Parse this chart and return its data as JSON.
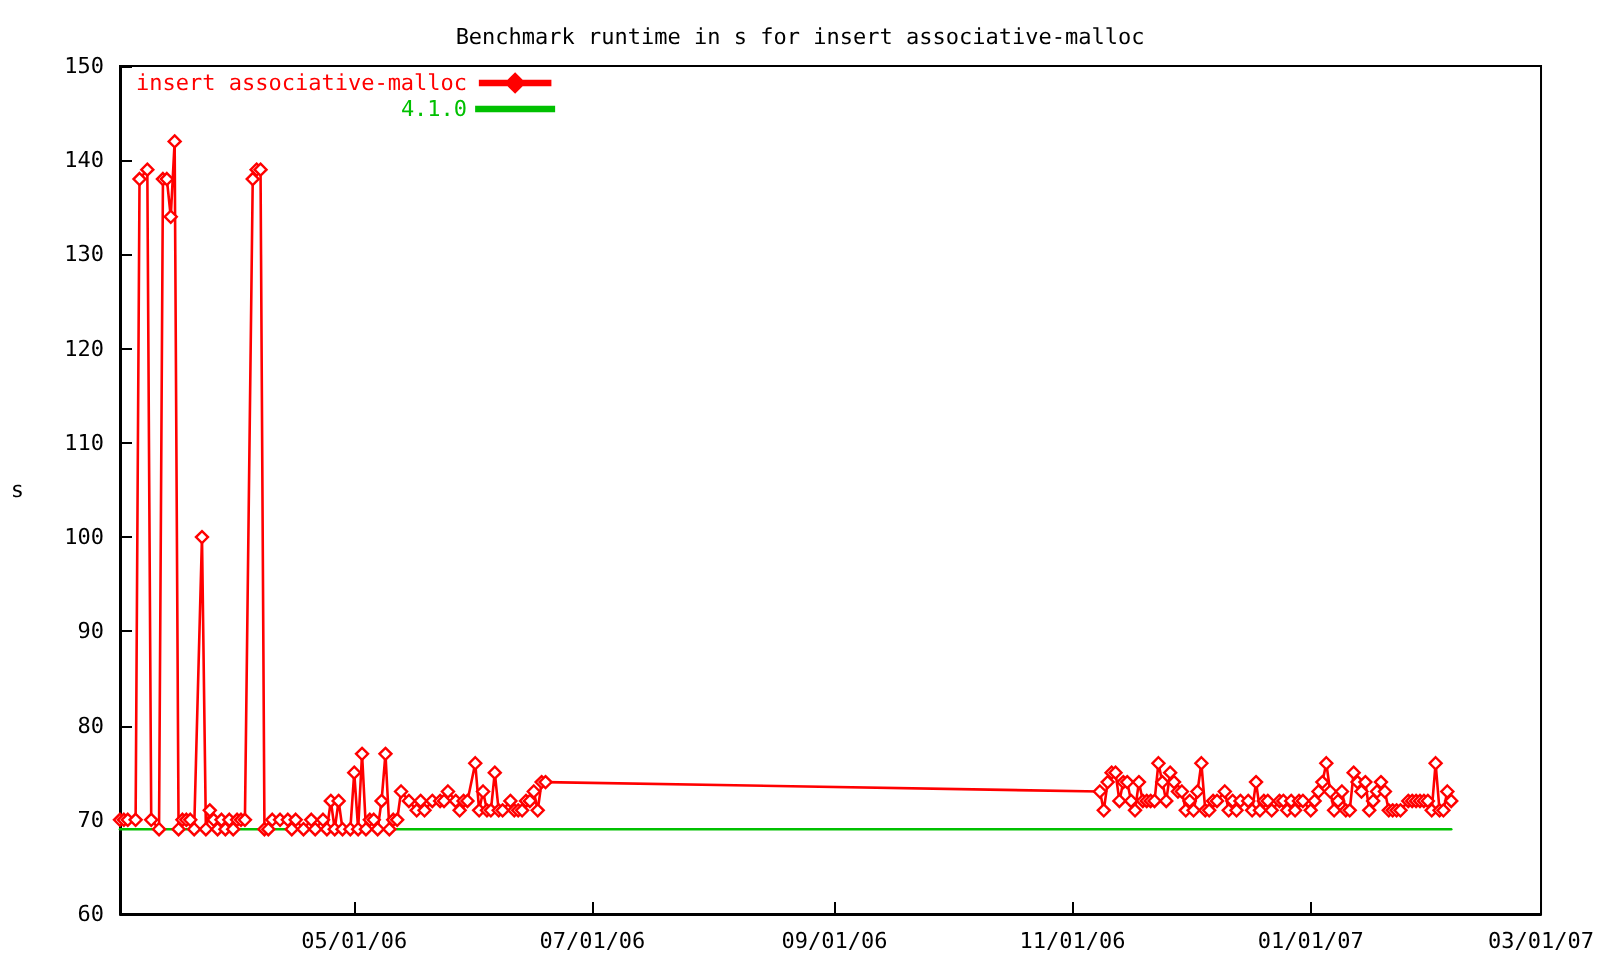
{
  "chart_data": {
    "type": "line",
    "title": "Benchmark runtime in s for insert associative-malloc",
    "ylabel": "s",
    "xlim": [
      "2006-03-02",
      "2007-03-01"
    ],
    "ylim": [
      60,
      150
    ],
    "xticks": [
      {
        "value": "2006-05-01",
        "label": "05/01/06"
      },
      {
        "value": "2006-07-01",
        "label": "07/01/06"
      },
      {
        "value": "2006-09-01",
        "label": "09/01/06"
      },
      {
        "value": "2006-11-01",
        "label": "11/01/06"
      },
      {
        "value": "2007-01-01",
        "label": "01/01/07"
      },
      {
        "value": "2007-03-01",
        "label": "03/01/07"
      }
    ],
    "yticks": [
      60,
      70,
      80,
      90,
      100,
      110,
      120,
      130,
      140,
      150
    ],
    "grid": false,
    "legend": "top left",
    "marker": "diamond",
    "line_style": "solid",
    "series": [
      {
        "name": "insert associative-malloc",
        "color": "#ff0000",
        "x": [
          "2006-03-02",
          "2006-03-03",
          "2006-03-04",
          "2006-03-06",
          "2006-03-07",
          "2006-03-09",
          "2006-03-10",
          "2006-03-12",
          "2006-03-13",
          "2006-03-14",
          "2006-03-15",
          "2006-03-16",
          "2006-03-17",
          "2006-03-18",
          "2006-03-19",
          "2006-03-20",
          "2006-03-21",
          "2006-03-23",
          "2006-03-24",
          "2006-03-25",
          "2006-03-26",
          "2006-03-27",
          "2006-03-28",
          "2006-03-29",
          "2006-03-30",
          "2006-03-31",
          "2006-04-01",
          "2006-04-02",
          "2006-04-03",
          "2006-04-05",
          "2006-04-06",
          "2006-04-07",
          "2006-04-08",
          "2006-04-09",
          "2006-04-10",
          "2006-04-12",
          "2006-04-14",
          "2006-04-15",
          "2006-04-16",
          "2006-04-18",
          "2006-04-20",
          "2006-04-21",
          "2006-04-23",
          "2006-04-24",
          "2006-04-25",
          "2006-04-26",
          "2006-04-27",
          "2006-04-28",
          "2006-04-30",
          "2006-05-01",
          "2006-05-02",
          "2006-05-03",
          "2006-05-04",
          "2006-05-05",
          "2006-05-06",
          "2006-05-07",
          "2006-05-08",
          "2006-05-09",
          "2006-05-10",
          "2006-05-11",
          "2006-05-12",
          "2006-05-13",
          "2006-05-15",
          "2006-05-17",
          "2006-05-18",
          "2006-05-19",
          "2006-05-21",
          "2006-05-23",
          "2006-05-24",
          "2006-05-25",
          "2006-05-27",
          "2006-05-28",
          "2006-05-29",
          "2006-05-30",
          "2006-06-01",
          "2006-06-02",
          "2006-06-03",
          "2006-06-04",
          "2006-06-05",
          "2006-06-06",
          "2006-06-07",
          "2006-06-08",
          "2006-06-10",
          "2006-06-11",
          "2006-06-12",
          "2006-06-13",
          "2006-06-14",
          "2006-06-15",
          "2006-06-16",
          "2006-06-17",
          "2006-06-18",
          "2006-06-19",
          "2006-11-08",
          "2006-11-09",
          "2006-11-10",
          "2006-11-11",
          "2006-11-12",
          "2006-11-13",
          "2006-11-14",
          "2006-11-15",
          "2006-11-16",
          "2006-11-17",
          "2006-11-18",
          "2006-11-19",
          "2006-11-20",
          "2006-11-21",
          "2006-11-22",
          "2006-11-23",
          "2006-11-24",
          "2006-11-25",
          "2006-11-26",
          "2006-11-27",
          "2006-11-28",
          "2006-11-29",
          "2006-11-30",
          "2006-12-01",
          "2006-12-02",
          "2006-12-03",
          "2006-12-04",
          "2006-12-05",
          "2006-12-06",
          "2006-12-07",
          "2006-12-08",
          "2006-12-10",
          "2006-12-11",
          "2006-12-12",
          "2006-12-13",
          "2006-12-14",
          "2006-12-16",
          "2006-12-17",
          "2006-12-18",
          "2006-12-19",
          "2006-12-20",
          "2006-12-21",
          "2006-12-22",
          "2006-12-24",
          "2006-12-25",
          "2006-12-26",
          "2006-12-27",
          "2006-12-28",
          "2006-12-29",
          "2006-12-30",
          "2007-01-01",
          "2007-01-02",
          "2007-01-03",
          "2007-01-04",
          "2007-01-05",
          "2007-01-06",
          "2007-01-07",
          "2007-01-08",
          "2007-01-09",
          "2007-01-10",
          "2007-01-11",
          "2007-01-12",
          "2007-01-13",
          "2007-01-14",
          "2007-01-15",
          "2007-01-16",
          "2007-01-17",
          "2007-01-18",
          "2007-01-19",
          "2007-01-20",
          "2007-01-21",
          "2007-01-22",
          "2007-01-23",
          "2007-01-24",
          "2007-01-26",
          "2007-01-27",
          "2007-01-28",
          "2007-01-29",
          "2007-01-30",
          "2007-01-31",
          "2007-02-01",
          "2007-02-02",
          "2007-02-03",
          "2007-02-04",
          "2007-02-05",
          "2007-02-06"
        ],
        "values": [
          70,
          70,
          70,
          70,
          138,
          139,
          70,
          69,
          138,
          138,
          134,
          142,
          69,
          70,
          70,
          70,
          69,
          100,
          69,
          71,
          70,
          69,
          70,
          69,
          70,
          69,
          70,
          70,
          70,
          138,
          139,
          139,
          69,
          69,
          70,
          70,
          70,
          69,
          70,
          69,
          70,
          69,
          70,
          69,
          72,
          69,
          72,
          69,
          69,
          75,
          69,
          77,
          69,
          70,
          70,
          69,
          72,
          77,
          69,
          70,
          70,
          73,
          72,
          71,
          72,
          71,
          72,
          72,
          72,
          73,
          72,
          71,
          72,
          72,
          76,
          71,
          73,
          71,
          71,
          75,
          71,
          71,
          72,
          71,
          71,
          71,
          72,
          72,
          73,
          71,
          74,
          74,
          73,
          71,
          74,
          75,
          75,
          72,
          74,
          74,
          72,
          71,
          74,
          72,
          72,
          72,
          72,
          76,
          74,
          72,
          75,
          74,
          73,
          73,
          71,
          72,
          71,
          73,
          76,
          71,
          71,
          72,
          72,
          73,
          71,
          72,
          71,
          72,
          72,
          71,
          74,
          71,
          72,
          72,
          71,
          72,
          72,
          71,
          72,
          71,
          72,
          72,
          71,
          72,
          73,
          74,
          76,
          73,
          71,
          72,
          73,
          71,
          71,
          75,
          74,
          73,
          74,
          71,
          72,
          73,
          74,
          73,
          71,
          71,
          71,
          71,
          72,
          72,
          72,
          72,
          72,
          72,
          71,
          76,
          71,
          71,
          73,
          72
        ]
      },
      {
        "name": "4.1.0",
        "color": "#00c000",
        "marker": "none",
        "x": [
          "2006-03-02",
          "2007-02-06"
        ],
        "values": [
          69,
          69
        ]
      }
    ]
  }
}
